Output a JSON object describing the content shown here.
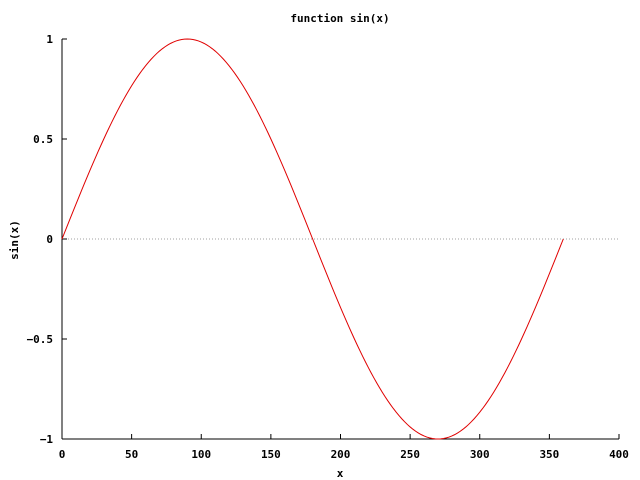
{
  "chart_data": {
    "type": "line",
    "title": "function sin(x)",
    "xlabel": "x",
    "ylabel": "sin(x)",
    "xlim": [
      0,
      400
    ],
    "ylim": [
      -1,
      1
    ],
    "x_ticks": [
      0,
      50,
      100,
      150,
      200,
      250,
      300,
      350,
      400
    ],
    "y_ticks": [
      1,
      0.5,
      0,
      -0.5,
      -1
    ],
    "x_tick_labels": [
      "0",
      "50",
      "100",
      "150",
      "200",
      "250",
      "300",
      "350",
      "400"
    ],
    "y_tick_labels": [
      "1",
      "0.5",
      "0",
      "−0.5",
      "−1"
    ],
    "zero_line": true,
    "grid": false,
    "series": [
      {
        "function": "sin(x)",
        "x_unit": "degrees",
        "x_start": 0,
        "x_end": 360,
        "color": "#e00000"
      }
    ]
  }
}
